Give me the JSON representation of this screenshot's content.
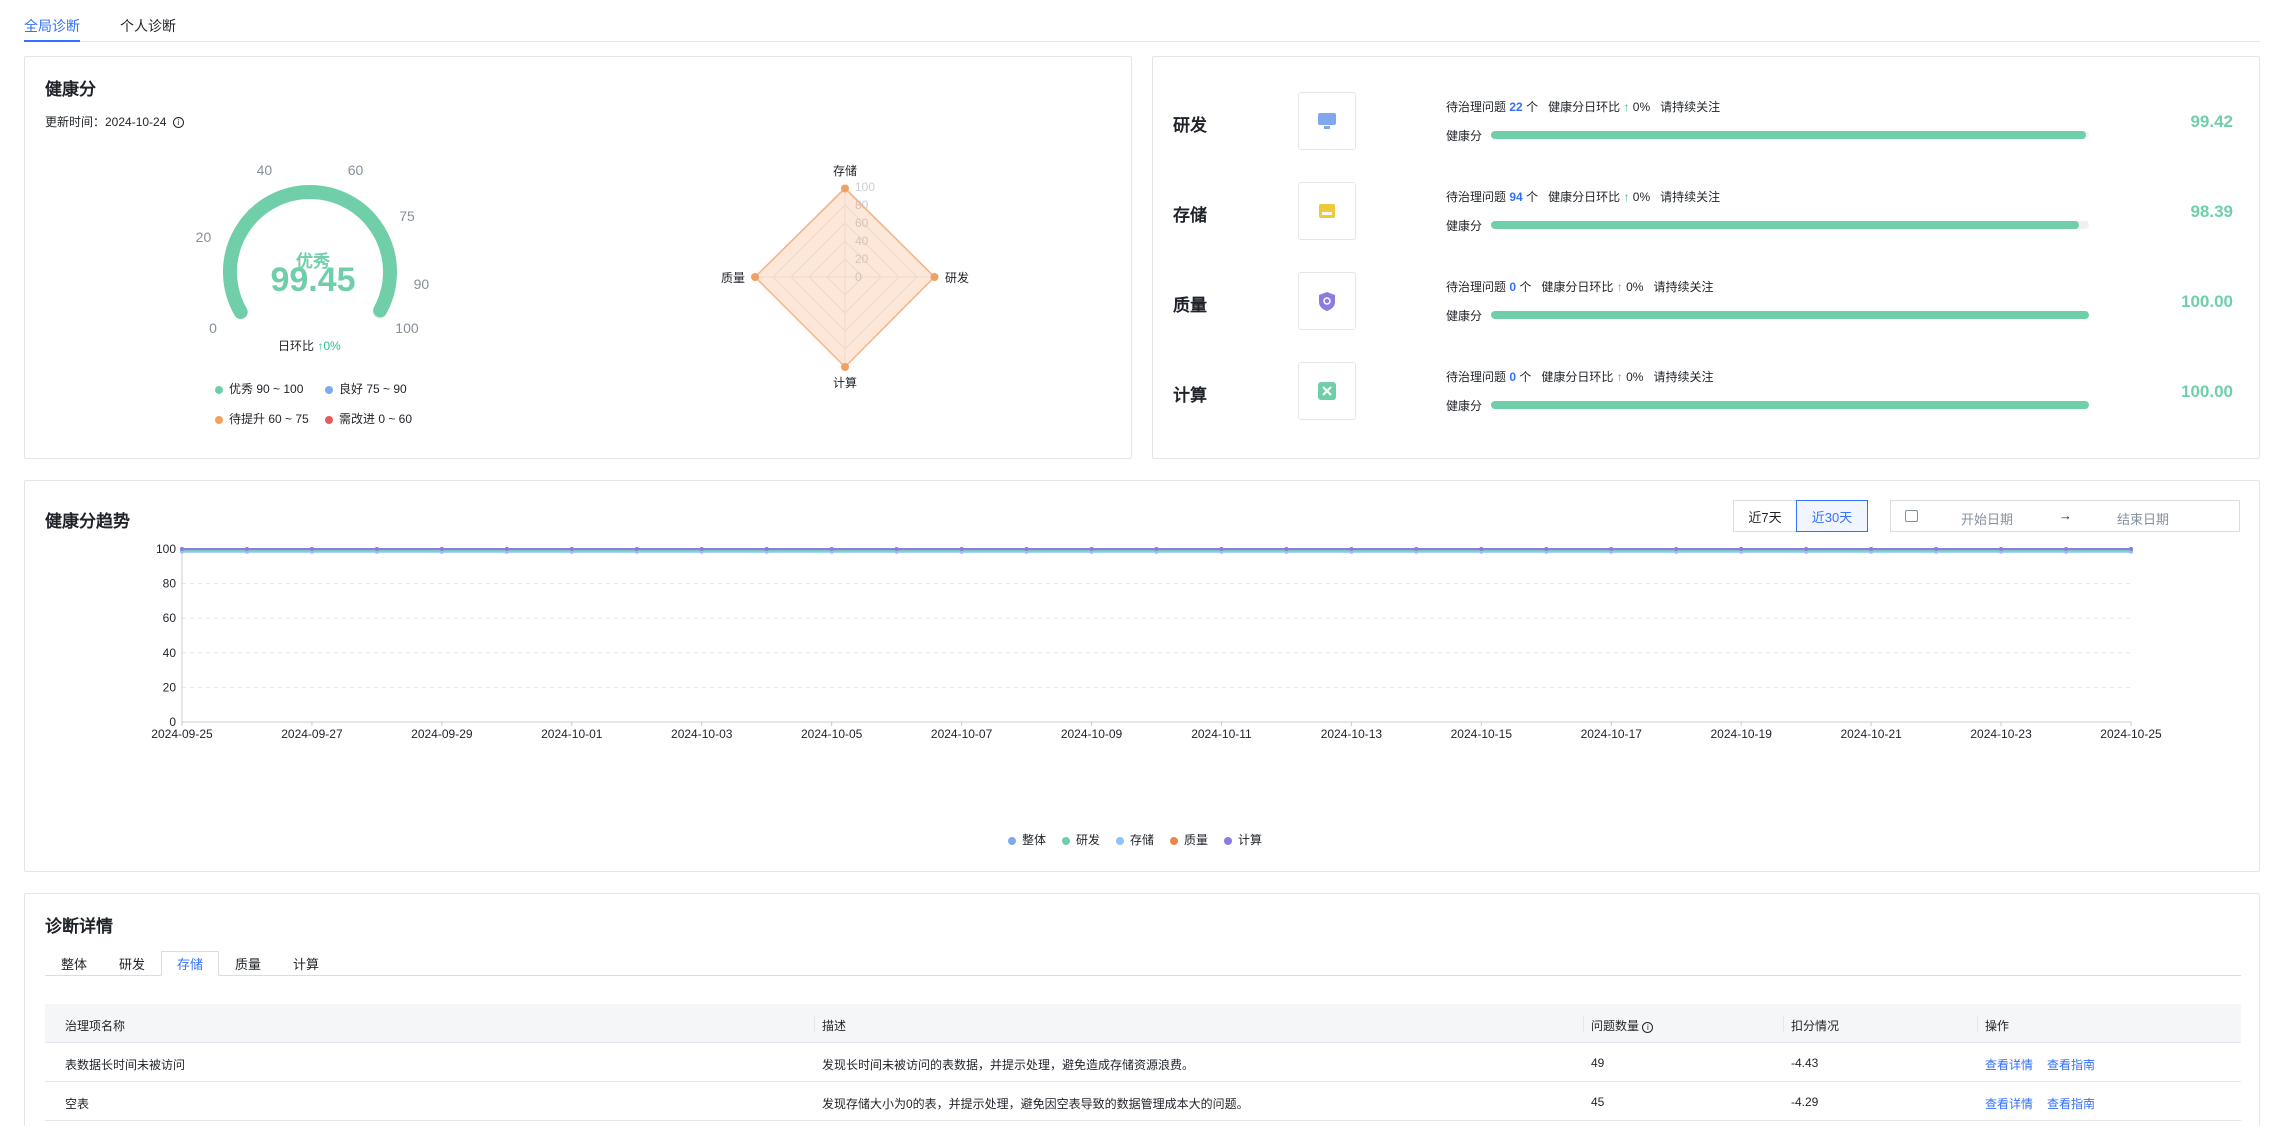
{
  "top_tabs": [
    "全局诊断",
    "个人诊断"
  ],
  "health": {
    "title": "健康分",
    "update_label": "更新时间：2024-10-24",
    "gauge": {
      "level": "优秀",
      "score": "99.45",
      "score_value": 99.45,
      "ticks": [
        "0",
        "20",
        "40",
        "60",
        "75",
        "90",
        "100"
      ],
      "daily_label": "日环比",
      "daily_value": "↑0%"
    },
    "legend": [
      {
        "label": "优秀 90 ~ 100",
        "color": "#70cfa9"
      },
      {
        "label": "良好 75 ~ 90",
        "color": "#7fa8ef"
      },
      {
        "label": "待提升 60 ~ 75",
        "color": "#f2a35a"
      },
      {
        "label": "需改进 0 ~ 60",
        "color": "#e65b5b"
      }
    ],
    "radar": {
      "axes": [
        "存储",
        "研发",
        "计算",
        "质量"
      ],
      "rings": [
        "100",
        "80",
        "60",
        "40",
        "20",
        "0"
      ],
      "values": [
        98.39,
        99.42,
        100,
        100
      ]
    }
  },
  "categories": [
    {
      "name": "研发",
      "icon": "monitor-icon",
      "color": "#7fa8ef",
      "pending_label": "待治理问题",
      "pending": "22",
      "unit": "个",
      "ratio_label": "健康分日环比",
      "ratio": "↑",
      "ratio_value": "0%",
      "note": "请持续关注",
      "bar_label": "健康分",
      "score": "99.42",
      "score_value": 99.42
    },
    {
      "name": "存储",
      "icon": "storage-icon",
      "color": "#f0c93a",
      "pending_label": "待治理问题",
      "pending": "94",
      "unit": "个",
      "ratio_label": "健康分日环比",
      "ratio": "↑",
      "ratio_value": "0%",
      "note": "请持续关注",
      "bar_label": "健康分",
      "score": "98.39",
      "score_value": 98.39
    },
    {
      "name": "质量",
      "icon": "shield-icon",
      "color": "#8c7be0",
      "pending_label": "待治理问题",
      "pending": "0",
      "unit": "个",
      "ratio_label": "健康分日环比",
      "ratio": "↑",
      "ratio_value": "0%",
      "note": "请持续关注",
      "bar_label": "健康分",
      "score": "100.00",
      "score_value": 100
    },
    {
      "name": "计算",
      "icon": "compute-icon",
      "color": "#70cfa9",
      "pending_label": "待治理问题",
      "pending": "0",
      "unit": "个",
      "ratio_label": "健康分日环比",
      "ratio": "↑",
      "ratio_value": "0%",
      "note": "请持续关注",
      "bar_label": "健康分",
      "score": "100.00",
      "score_value": 100
    }
  ],
  "trend": {
    "title": "健康分趋势",
    "btn_7": "近7天",
    "btn_30": "近30天",
    "start_placeholder": "开始日期",
    "arrow": "→",
    "end_placeholder": "结束日期"
  },
  "chart_data": {
    "type": "line",
    "title": "健康分趋势",
    "ylim": [
      0,
      100
    ],
    "y_ticks": [
      0,
      20,
      40,
      60,
      80,
      100
    ],
    "x_ticks": [
      "2024-09-25",
      "2024-09-27",
      "2024-09-29",
      "2024-10-01",
      "2024-10-03",
      "2024-10-05",
      "2024-10-07",
      "2024-10-09",
      "2024-10-11",
      "2024-10-13",
      "2024-10-15",
      "2024-10-17",
      "2024-10-19",
      "2024-10-21",
      "2024-10-23",
      "2024-10-25"
    ],
    "point_count": 31,
    "series": [
      {
        "name": "整体",
        "color": "#7fa8ef",
        "value": 99.45
      },
      {
        "name": "研发",
        "color": "#70cfa9",
        "value": 99.42
      },
      {
        "name": "存储",
        "color": "#8dc3f5",
        "value": 98.39
      },
      {
        "name": "质量",
        "color": "#e8894a",
        "value": 100
      },
      {
        "name": "计算",
        "color": "#8c7be0",
        "value": 100
      }
    ],
    "grid": true,
    "legend": "bottom"
  },
  "diagnosis": {
    "title": "诊断详情",
    "tabs": [
      "整体",
      "研发",
      "存储",
      "质量",
      "计算"
    ],
    "active_tab": 2,
    "columns": [
      "治理项名称",
      "描述",
      "问题数量",
      "扣分情况",
      "操作"
    ],
    "rows": [
      {
        "name": "表数据长时间未被访问",
        "desc": "发现长时间未被访问的表数据，并提示处理，避免造成存储资源浪费。",
        "count": "49",
        "deduct": "-4.43",
        "action1": "查看详情",
        "action2": "查看指南"
      },
      {
        "name": "空表",
        "desc": "发现存储大小为0的表，并提示处理，避免因空表导致的数据管理成本大的问题。",
        "count": "45",
        "deduct": "-4.29",
        "action1": "查看详情",
        "action2": "查看指南"
      }
    ]
  }
}
